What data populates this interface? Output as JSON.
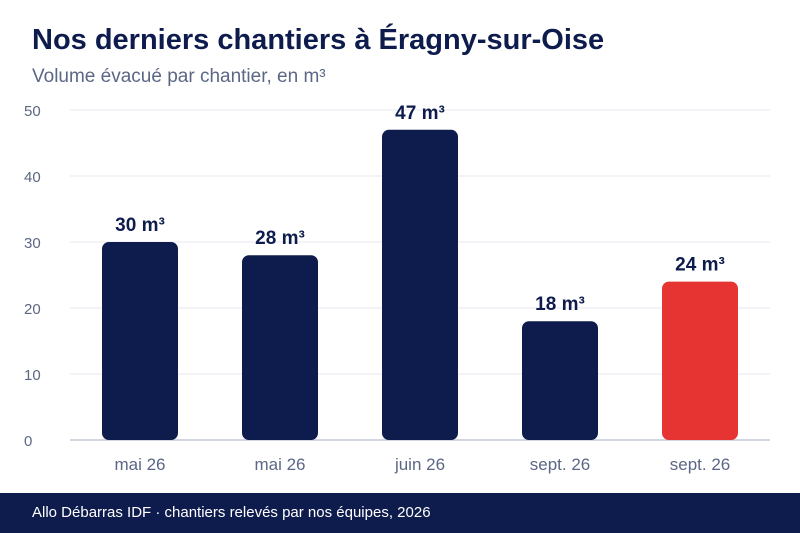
{
  "header": {
    "title": "Nos derniers chantiers à Éragny-sur-Oise",
    "subtitle": "Volume évacué par chantier, en m³"
  },
  "footer": {
    "source": "Allo Débarras IDF · chantiers relevés par nos équipes, 2026"
  },
  "colors": {
    "bar": "#0e1c4d",
    "highlight": "#e53431",
    "axis_text": "#5b6785",
    "grid": "#e8eaf0",
    "baseline": "#c3c8d6",
    "label": "#0e1c4d"
  },
  "chart_data": {
    "type": "bar",
    "categories": [
      "mai 26",
      "mai 26",
      "juin 26",
      "sept. 26",
      "sept. 26"
    ],
    "values": [
      30,
      28,
      47,
      18,
      24
    ],
    "data_labels": [
      "30 m³",
      "28 m³",
      "47 m³",
      "18 m³",
      "24 m³"
    ],
    "highlight_index": 4,
    "yticks": [
      0,
      10,
      20,
      30,
      40,
      50
    ],
    "ylim": [
      0,
      50
    ],
    "grid": true,
    "legend": "none"
  }
}
